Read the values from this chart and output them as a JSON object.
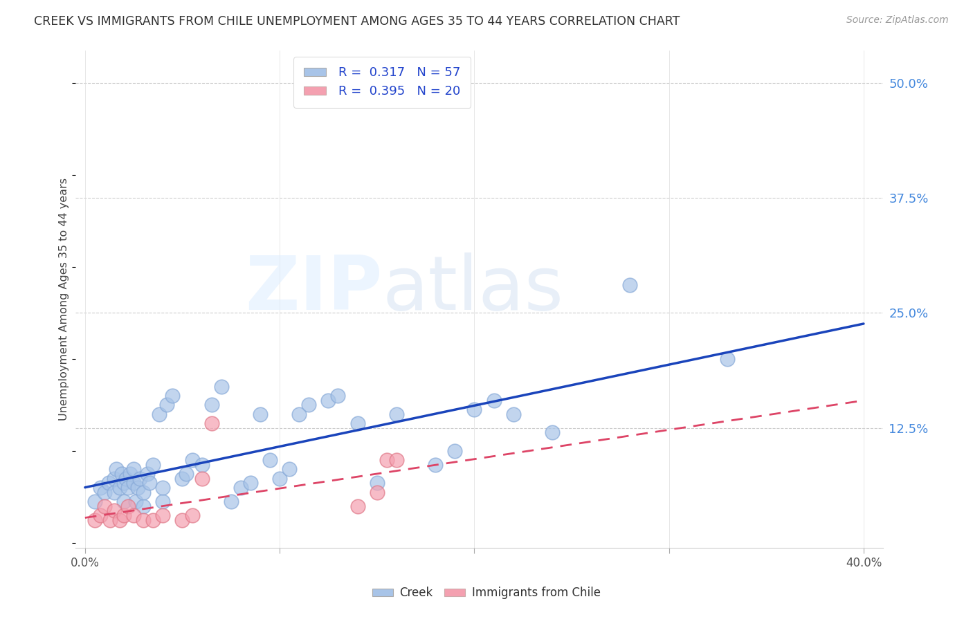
{
  "title": "CREEK VS IMMIGRANTS FROM CHILE UNEMPLOYMENT AMONG AGES 35 TO 44 YEARS CORRELATION CHART",
  "source": "Source: ZipAtlas.com",
  "ylabel": "Unemployment Among Ages 35 to 44 years",
  "x_tick_labels": [
    "0.0%",
    "",
    "",
    "",
    "40.0%"
  ],
  "x_tick_values": [
    0.0,
    0.1,
    0.2,
    0.3,
    0.4
  ],
  "y_tick_labels": [
    "50.0%",
    "37.5%",
    "25.0%",
    "12.5%"
  ],
  "y_tick_values": [
    0.5,
    0.375,
    0.25,
    0.125
  ],
  "xlim": [
    -0.005,
    0.41
  ],
  "ylim": [
    -0.005,
    0.535
  ],
  "creek_color": "#a8c4e8",
  "chile_color": "#f4a0b0",
  "creek_edge_color": "#88aad8",
  "chile_edge_color": "#e07888",
  "creek_line_color": "#1a44bb",
  "chile_line_color": "#dd4466",
  "creek_R": 0.317,
  "creek_N": 57,
  "chile_R": 0.395,
  "chile_N": 20,
  "creek_x": [
    0.005,
    0.008,
    0.01,
    0.012,
    0.015,
    0.015,
    0.016,
    0.018,
    0.019,
    0.02,
    0.02,
    0.021,
    0.022,
    0.023,
    0.025,
    0.025,
    0.026,
    0.027,
    0.028,
    0.03,
    0.03,
    0.032,
    0.033,
    0.035,
    0.038,
    0.04,
    0.04,
    0.042,
    0.045,
    0.05,
    0.052,
    0.055,
    0.06,
    0.065,
    0.07,
    0.075,
    0.08,
    0.085,
    0.09,
    0.095,
    0.1,
    0.105,
    0.11,
    0.115,
    0.125,
    0.13,
    0.14,
    0.15,
    0.16,
    0.18,
    0.19,
    0.2,
    0.21,
    0.22,
    0.24,
    0.28,
    0.33
  ],
  "creek_y": [
    0.045,
    0.06,
    0.055,
    0.065,
    0.055,
    0.07,
    0.08,
    0.06,
    0.075,
    0.045,
    0.065,
    0.07,
    0.06,
    0.075,
    0.065,
    0.08,
    0.045,
    0.06,
    0.07,
    0.04,
    0.055,
    0.075,
    0.065,
    0.085,
    0.14,
    0.045,
    0.06,
    0.15,
    0.16,
    0.07,
    0.075,
    0.09,
    0.085,
    0.15,
    0.17,
    0.045,
    0.06,
    0.065,
    0.14,
    0.09,
    0.07,
    0.08,
    0.14,
    0.15,
    0.155,
    0.16,
    0.13,
    0.065,
    0.14,
    0.085,
    0.1,
    0.145,
    0.155,
    0.14,
    0.12,
    0.28,
    0.2
  ],
  "chile_x": [
    0.005,
    0.008,
    0.01,
    0.013,
    0.015,
    0.018,
    0.02,
    0.022,
    0.025,
    0.03,
    0.035,
    0.04,
    0.05,
    0.055,
    0.06,
    0.065,
    0.14,
    0.15,
    0.155,
    0.16
  ],
  "chile_y": [
    0.025,
    0.03,
    0.04,
    0.025,
    0.035,
    0.025,
    0.03,
    0.04,
    0.03,
    0.025,
    0.025,
    0.03,
    0.025,
    0.03,
    0.07,
    0.13,
    0.04,
    0.055,
    0.09,
    0.09
  ]
}
